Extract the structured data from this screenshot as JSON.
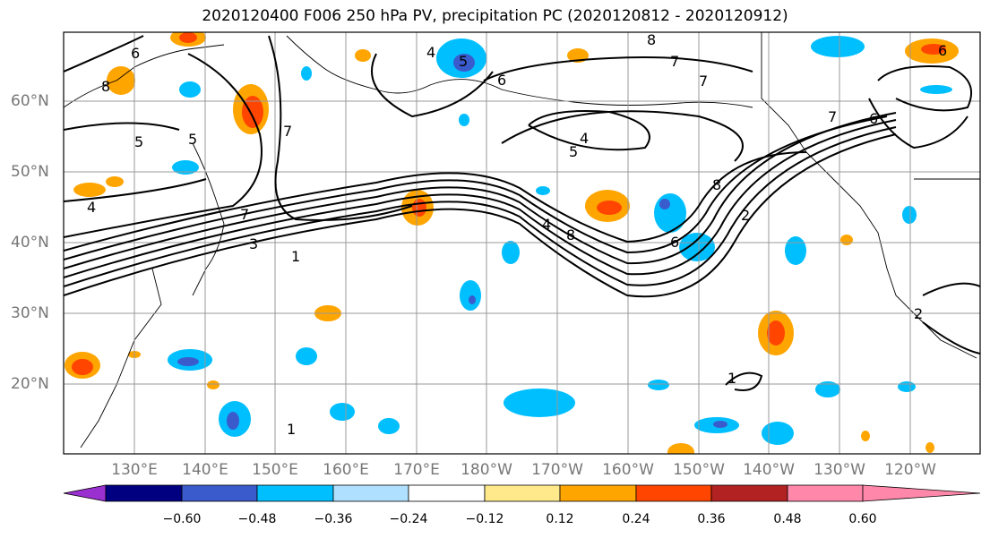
{
  "title": "2020120400 F006 250 hPa PV, precipitation PC (2020120812 - 2020120912)",
  "lat_labels": [
    "60°N",
    "50°N",
    "40°N",
    "30°N",
    "20°N"
  ],
  "lon_labels": [
    "130°E",
    "140°E",
    "150°E",
    "160°E",
    "170°E",
    "180°W",
    "170°W",
    "160°W",
    "150°W",
    "140°W",
    "130°W",
    "120°W"
  ],
  "colorbar": {
    "ticks": [
      "−0.60",
      "−0.48",
      "−0.36",
      "−0.24",
      "−0.12",
      "0.12",
      "0.24",
      "0.36",
      "0.48",
      "0.60"
    ],
    "colors": [
      "#9b30d0",
      "#000080",
      "#3a5bcc",
      "#00bfff",
      "#b0e0ff",
      "#ffffff",
      "#ffe98a",
      "#ffa500",
      "#ff4500",
      "#b22222",
      "#ff88aa"
    ]
  },
  "contour_labels": [
    "6",
    "8",
    "5",
    "4",
    "5",
    "6",
    "8",
    "7",
    "6",
    "6",
    "7",
    "5",
    "7",
    "4",
    "5",
    "4",
    "3",
    "1",
    "7",
    "8",
    "6",
    "4",
    "8",
    "2",
    "7",
    "1",
    "1",
    "2"
  ],
  "colors": {
    "contour": "#000000",
    "grid": "#999999",
    "coast": "#000000"
  }
}
